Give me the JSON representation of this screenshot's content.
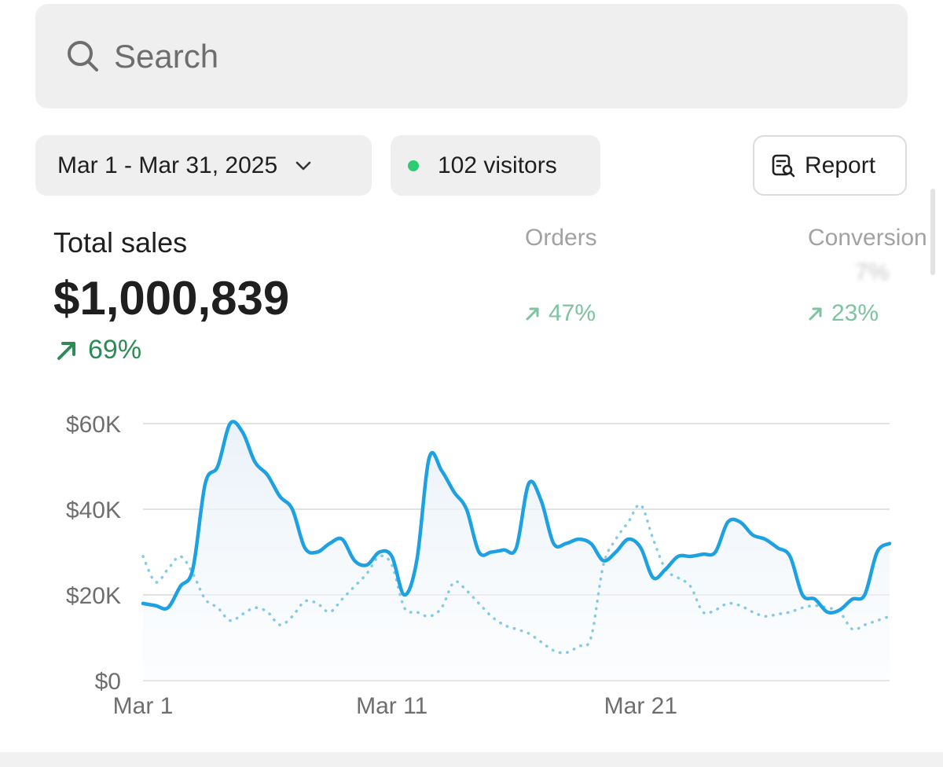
{
  "search": {
    "placeholder": "Search"
  },
  "filters": {
    "date_range": "Mar 1 - Mar 31, 2025",
    "visitors": "102 visitors",
    "report_label": "Report"
  },
  "metrics": {
    "total_sales": {
      "label": "Total sales",
      "value": "$1,000,839",
      "change": "69%"
    },
    "orders": {
      "label": "Orders",
      "value": "",
      "change": "47%"
    },
    "conversion": {
      "label": "Conversion",
      "value": "7%",
      "change": "23%"
    }
  },
  "colors": {
    "primary_line": "#1da1e2",
    "comparison_line": "#86cbe6",
    "positive": "#2e8b57",
    "live_dot": "#2ecc71"
  },
  "chart_data": {
    "type": "line",
    "xlabel": "",
    "ylabel": "",
    "x_ticks": [
      "Mar 1",
      "Mar 11",
      "Mar 21"
    ],
    "y_ticks": [
      "$0",
      "$20K",
      "$40K",
      "$60K"
    ],
    "ylim": [
      0,
      60000
    ],
    "grid": true,
    "series": [
      {
        "style": "solid",
        "values": [
          [
            1.0,
            18000
          ],
          [
            1.5,
            17500
          ],
          [
            2.0,
            17000
          ],
          [
            2.5,
            22000
          ],
          [
            3.0,
            26000
          ],
          [
            3.5,
            46000
          ],
          [
            4.0,
            50000
          ],
          [
            4.5,
            60000
          ],
          [
            5.0,
            58000
          ],
          [
            5.5,
            51000
          ],
          [
            6.0,
            48000
          ],
          [
            6.5,
            43000
          ],
          [
            7.0,
            40000
          ],
          [
            7.5,
            31000
          ],
          [
            8.0,
            30000
          ],
          [
            8.5,
            32000
          ],
          [
            9.0,
            33000
          ],
          [
            9.5,
            28000
          ],
          [
            10.0,
            27000
          ],
          [
            10.5,
            30000
          ],
          [
            11.0,
            29000
          ],
          [
            11.5,
            20000
          ],
          [
            12.0,
            28000
          ],
          [
            12.5,
            52000
          ],
          [
            13.0,
            49000
          ],
          [
            13.5,
            44000
          ],
          [
            14.0,
            40000
          ],
          [
            14.5,
            30000
          ],
          [
            15.0,
            30000
          ],
          [
            15.5,
            30500
          ],
          [
            16.0,
            31000
          ],
          [
            16.5,
            46000
          ],
          [
            17.0,
            42000
          ],
          [
            17.5,
            32000
          ],
          [
            18.0,
            32000
          ],
          [
            18.5,
            33000
          ],
          [
            19.0,
            32000
          ],
          [
            19.5,
            28000
          ],
          [
            20.0,
            30000
          ],
          [
            20.5,
            33000
          ],
          [
            21.0,
            31000
          ],
          [
            21.5,
            24000
          ],
          [
            22.0,
            26000
          ],
          [
            22.5,
            29000
          ],
          [
            23.0,
            29000
          ],
          [
            23.5,
            29500
          ],
          [
            24.0,
            30000
          ],
          [
            24.5,
            37000
          ],
          [
            25.0,
            37000
          ],
          [
            25.5,
            34000
          ],
          [
            26.0,
            33000
          ],
          [
            26.5,
            31000
          ],
          [
            27.0,
            29000
          ],
          [
            27.5,
            20000
          ],
          [
            28.0,
            19000
          ],
          [
            28.5,
            16000
          ],
          [
            29.0,
            16500
          ],
          [
            29.5,
            19000
          ],
          [
            30.0,
            20000
          ],
          [
            30.5,
            30000
          ],
          [
            31.0,
            32000
          ]
        ]
      },
      {
        "style": "dotted",
        "values": [
          [
            1.0,
            29000
          ],
          [
            1.5,
            23000
          ],
          [
            2.0,
            26000
          ],
          [
            2.5,
            29000
          ],
          [
            3.0,
            25000
          ],
          [
            3.5,
            19000
          ],
          [
            4.0,
            17000
          ],
          [
            4.5,
            14000
          ],
          [
            5.0,
            15500
          ],
          [
            5.5,
            17000
          ],
          [
            6.0,
            16000
          ],
          [
            6.5,
            13000
          ],
          [
            7.0,
            15000
          ],
          [
            7.5,
            18500
          ],
          [
            8.0,
            18000
          ],
          [
            8.5,
            16000
          ],
          [
            9.0,
            19000
          ],
          [
            9.5,
            22000
          ],
          [
            10.0,
            25000
          ],
          [
            10.5,
            29000
          ],
          [
            11.0,
            27000
          ],
          [
            11.5,
            17000
          ],
          [
            12.0,
            16000
          ],
          [
            12.5,
            15000
          ],
          [
            13.0,
            17000
          ],
          [
            13.5,
            23000
          ],
          [
            14.0,
            21000
          ],
          [
            14.5,
            18000
          ],
          [
            15.0,
            15000
          ],
          [
            15.5,
            13000
          ],
          [
            16.0,
            12000
          ],
          [
            16.5,
            11000
          ],
          [
            17.0,
            9000
          ],
          [
            17.5,
            7000
          ],
          [
            18.0,
            6500
          ],
          [
            18.5,
            8000
          ],
          [
            19.0,
            10000
          ],
          [
            19.5,
            27000
          ],
          [
            20.0,
            33000
          ],
          [
            20.5,
            37000
          ],
          [
            21.0,
            41000
          ],
          [
            21.5,
            33000
          ],
          [
            22.0,
            26000
          ],
          [
            22.5,
            24000
          ],
          [
            23.0,
            22000
          ],
          [
            23.5,
            16000
          ],
          [
            24.0,
            16500
          ],
          [
            24.5,
            18000
          ],
          [
            25.0,
            17500
          ],
          [
            25.5,
            16000
          ],
          [
            26.0,
            15000
          ],
          [
            26.5,
            15500
          ],
          [
            27.0,
            16000
          ],
          [
            27.5,
            17000
          ],
          [
            28.0,
            17500
          ],
          [
            28.5,
            17000
          ],
          [
            29.0,
            16000
          ],
          [
            29.5,
            12000
          ],
          [
            30.0,
            13000
          ],
          [
            30.5,
            14000
          ],
          [
            31.0,
            15000
          ]
        ]
      }
    ]
  }
}
